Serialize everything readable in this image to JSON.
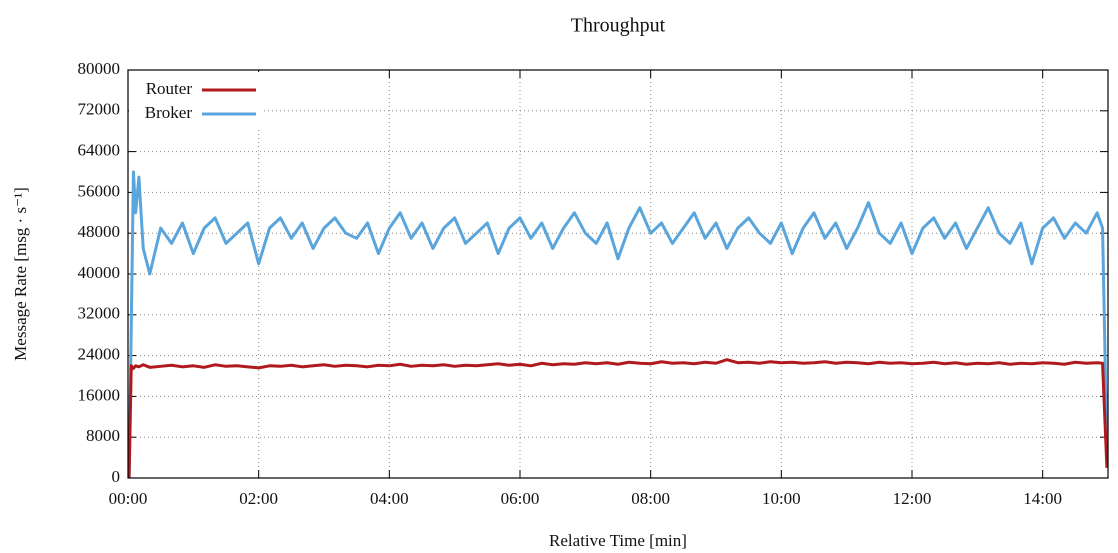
{
  "chart_data": {
    "type": "line",
    "title": "Throughput",
    "x_label": "Relative Time [min]",
    "y_label": "Message Rate [msg · s⁻¹]",
    "xlim": [
      0,
      900
    ],
    "ylim": [
      0,
      80000
    ],
    "xticks": [
      {
        "value": 0,
        "label": "00:00"
      },
      {
        "value": 120,
        "label": "02:00"
      },
      {
        "value": 240,
        "label": "04:00"
      },
      {
        "value": 360,
        "label": "06:00"
      },
      {
        "value": 480,
        "label": "08:00"
      },
      {
        "value": 600,
        "label": "10:00"
      },
      {
        "value": 720,
        "label": "12:00"
      },
      {
        "value": 840,
        "label": "14:00"
      }
    ],
    "yticks": [
      0,
      8000,
      16000,
      24000,
      32000,
      40000,
      48000,
      56000,
      64000,
      72000,
      80000
    ],
    "grid": true,
    "legend": "upper left",
    "x": [
      1,
      3,
      5,
      7,
      10,
      14,
      20,
      30,
      40,
      50,
      60,
      70,
      80,
      90,
      100,
      110,
      120,
      130,
      140,
      150,
      160,
      170,
      180,
      190,
      200,
      210,
      220,
      230,
      240,
      250,
      260,
      270,
      280,
      290,
      300,
      310,
      320,
      330,
      340,
      350,
      360,
      370,
      380,
      390,
      400,
      410,
      420,
      430,
      440,
      450,
      460,
      470,
      480,
      490,
      500,
      510,
      520,
      530,
      540,
      550,
      560,
      570,
      580,
      590,
      600,
      610,
      620,
      630,
      640,
      650,
      660,
      670,
      680,
      690,
      700,
      710,
      720,
      730,
      740,
      750,
      760,
      770,
      780,
      790,
      800,
      810,
      820,
      830,
      840,
      850,
      860,
      870,
      880,
      890,
      895,
      899
    ],
    "series": [
      {
        "name": "Router",
        "color": "#b0191e",
        "values": [
          0,
          22000,
          21500,
          22000,
          21800,
          22200,
          21700,
          21900,
          22100,
          21800,
          22000,
          21700,
          22200,
          21900,
          22000,
          21800,
          21600,
          22000,
          21900,
          22100,
          21800,
          22000,
          22200,
          21900,
          22100,
          22000,
          21800,
          22100,
          22000,
          22300,
          21900,
          22100,
          22000,
          22200,
          21900,
          22100,
          22000,
          22200,
          22400,
          22100,
          22300,
          22000,
          22500,
          22200,
          22400,
          22300,
          22600,
          22400,
          22600,
          22300,
          22700,
          22500,
          22400,
          22800,
          22500,
          22600,
          22400,
          22700,
          22500,
          23200,
          22600,
          22700,
          22500,
          22800,
          22600,
          22700,
          22500,
          22600,
          22800,
          22500,
          22700,
          22600,
          22400,
          22700,
          22500,
          22600,
          22400,
          22500,
          22700,
          22400,
          22600,
          22300,
          22500,
          22400,
          22600,
          22300,
          22500,
          22400,
          22600,
          22500,
          22300,
          22700,
          22500,
          22600,
          22500,
          2000
        ]
      },
      {
        "name": "Broker",
        "color": "#5aa5dc",
        "values": [
          0,
          30000,
          60000,
          52000,
          59000,
          45000,
          40000,
          49000,
          46000,
          50000,
          44000,
          49000,
          51000,
          46000,
          48000,
          50000,
          42000,
          49000,
          51000,
          47000,
          50000,
          45000,
          49000,
          51000,
          48000,
          47000,
          50000,
          44000,
          49000,
          52000,
          47000,
          50000,
          45000,
          49000,
          51000,
          46000,
          48000,
          50000,
          44000,
          49000,
          51000,
          47000,
          50000,
          45000,
          49000,
          52000,
          48000,
          46000,
          50000,
          43000,
          49000,
          53000,
          48000,
          50000,
          46000,
          49000,
          52000,
          47000,
          50000,
          45000,
          49000,
          51000,
          48000,
          46000,
          50000,
          44000,
          49000,
          52000,
          47000,
          50000,
          45000,
          49000,
          54000,
          48000,
          46000,
          50000,
          44000,
          49000,
          51000,
          47000,
          50000,
          45000,
          49000,
          53000,
          48000,
          46000,
          50000,
          42000,
          49000,
          51000,
          47000,
          50000,
          48000,
          52000,
          49000,
          5000
        ]
      }
    ]
  }
}
